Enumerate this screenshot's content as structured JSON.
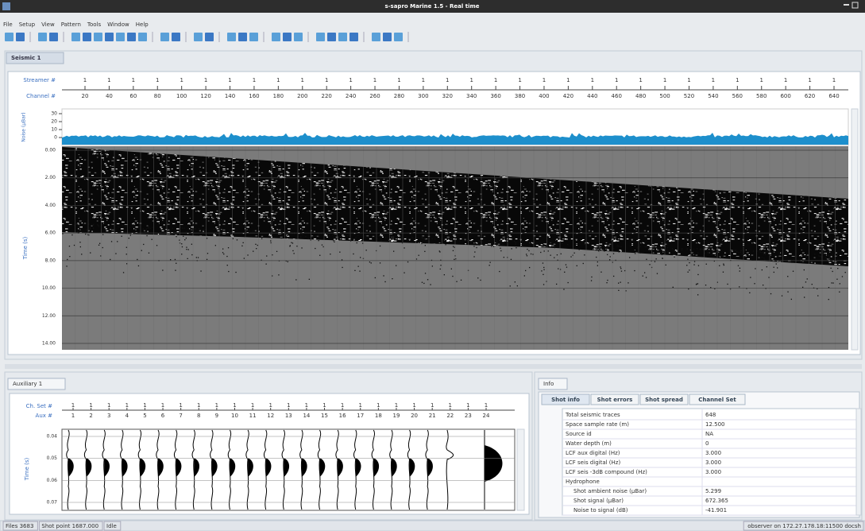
{
  "window": {
    "title": "s-sapro Marine 1.5 - Real time"
  },
  "menu": [
    "File",
    "Setup",
    "View",
    "Pattern",
    "Tools",
    "Window",
    "Help"
  ],
  "seismic": {
    "tab": "Seismic 1",
    "streamer_label": "Streamer #",
    "channel_label": "Channel #",
    "streamers": [
      "1",
      "1",
      "1",
      "1",
      "1",
      "1",
      "1",
      "1",
      "1",
      "1",
      "1",
      "1",
      "1",
      "1",
      "1",
      "1",
      "1",
      "1",
      "1",
      "1",
      "1",
      "1",
      "1",
      "1",
      "1",
      "1",
      "1",
      "1",
      "1",
      "1",
      "1",
      "1"
    ],
    "channels": [
      20,
      40,
      60,
      80,
      100,
      120,
      140,
      160,
      180,
      200,
      220,
      240,
      260,
      280,
      300,
      320,
      340,
      360,
      380,
      400,
      420,
      440,
      460,
      480,
      500,
      520,
      540,
      560,
      580,
      600,
      620,
      640
    ],
    "noise_axis": {
      "label": "Noise (µBar)",
      "ticks": [
        "30",
        "20",
        "10",
        "0"
      ]
    },
    "time_axis": {
      "label": "Time (s)",
      "ticks": [
        "0.00",
        "2.00",
        "4.00",
        "6.00",
        "8.00",
        "10.00",
        "12.00",
        "14.00"
      ]
    }
  },
  "auxiliary": {
    "tab": "Auxiliary 1",
    "ch_set_label": "Ch. Set #",
    "aux_label": "Aux #",
    "ch_sets": [
      "1",
      "1",
      "1",
      "1",
      "1",
      "1",
      "1",
      "1",
      "1",
      "1",
      "1",
      "1",
      "1",
      "1",
      "1",
      "1",
      "1",
      "1",
      "1",
      "1",
      "1",
      "1",
      "1",
      "1"
    ],
    "aux": [
      1,
      2,
      3,
      4,
      5,
      6,
      7,
      8,
      9,
      10,
      11,
      12,
      13,
      14,
      15,
      16,
      17,
      18,
      19,
      20,
      21,
      22,
      23,
      24
    ],
    "time_axis": {
      "label": "Time (s)",
      "ticks": [
        "0.04",
        "0.05",
        "0.06",
        "0.07"
      ]
    }
  },
  "info": {
    "tab": "Info",
    "tabs": [
      "Shot info",
      "Shot errors",
      "Shot spread",
      "Channel Set"
    ],
    "rows": [
      [
        "Total seismic traces",
        "648"
      ],
      [
        "Space sample rate (m)",
        "12.500"
      ],
      [
        "Source id",
        "NA"
      ],
      [
        "Water depth (m)",
        "0"
      ],
      [
        "LCF aux digital    (Hz)",
        "3.000"
      ],
      [
        "LCF seis digital    (Hz)",
        "3.000"
      ],
      [
        "LCF seis -3dB compound (Hz)",
        "3.000"
      ],
      [
        "Hydrophone"
      ],
      [
        "Shot ambient noise (µBar)",
        "5.299"
      ],
      [
        "Shot signal (µBar)",
        "672.365"
      ],
      [
        "Noise to signal (dB)",
        "-41.901"
      ]
    ]
  },
  "status": {
    "items": [
      "Files 3683",
      "Shot point 1687.000",
      "Idle"
    ],
    "connection": "observer on 172.27.178.18:11500 docsh"
  }
}
